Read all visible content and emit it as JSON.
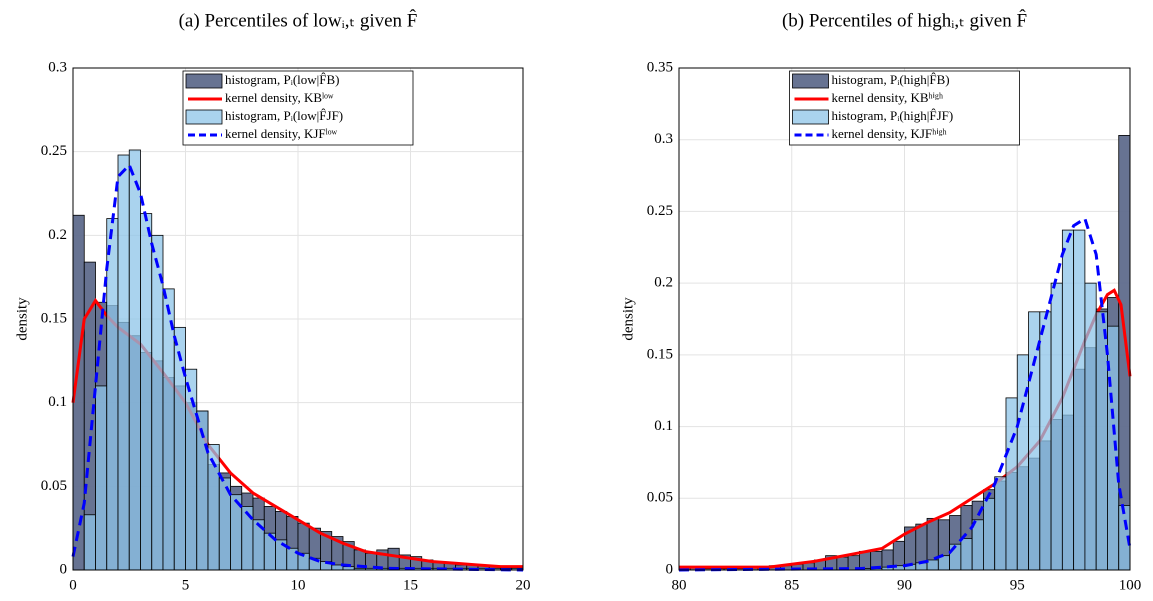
{
  "chart_data": [
    {
      "type": "histogram",
      "title": "(a) Percentiles of lowᵢ,ₜ given F̂",
      "ylabel": "density",
      "xlim": [
        0,
        20
      ],
      "xticks": [
        0,
        5,
        10,
        15,
        20
      ],
      "ylim": [
        0,
        0.3
      ],
      "yticks": [
        0,
        0.05,
        0.1,
        0.15,
        0.2,
        0.25,
        0.3
      ],
      "grid": true,
      "legend": "north",
      "bins": [
        0,
        0.5,
        1,
        1.5,
        2,
        2.5,
        3,
        3.5,
        4,
        4.5,
        5,
        5.5,
        6,
        6.5,
        7,
        7.5,
        8,
        8.5,
        9,
        9.5,
        10,
        10.5,
        11,
        11.5,
        12,
        12.5,
        13,
        13.5,
        14,
        14.5,
        15,
        15.5,
        16,
        16.5,
        17,
        17.5,
        18,
        18.5,
        19,
        19.5,
        20
      ],
      "series": [
        {
          "name": "histogram, Pᵢ(low|F̂B)",
          "type": "histogram",
          "color": "#5f6c8c",
          "opacity": 0.95,
          "values": [
            0.212,
            0.184,
            0.16,
            0.158,
            0.148,
            0.14,
            0.13,
            0.125,
            0.115,
            0.11,
            0.1,
            0.095,
            0.063,
            0.058,
            0.05,
            0.046,
            0.043,
            0.038,
            0.035,
            0.032,
            0.028,
            0.025,
            0.023,
            0.02,
            0.017,
            0.012,
            0.01,
            0.012,
            0.013,
            0.009,
            0.008,
            0.006,
            0.005,
            0.004,
            0.003,
            0.003,
            0.003,
            0.002,
            0.002,
            0.002
          ]
        },
        {
          "name": "kernel density, KBˡᵒʷ",
          "type": "line",
          "color": "#ff0000",
          "dash": false,
          "x": [
            0,
            0.5,
            1,
            1.5,
            2,
            3,
            4,
            5,
            6,
            7,
            8,
            9,
            10,
            11,
            12,
            13,
            14,
            15,
            16,
            17,
            18,
            19,
            20
          ],
          "values": [
            0.1,
            0.15,
            0.161,
            0.152,
            0.145,
            0.135,
            0.118,
            0.1,
            0.075,
            0.058,
            0.046,
            0.038,
            0.03,
            0.022,
            0.016,
            0.011,
            0.009,
            0.007,
            0.005,
            0.004,
            0.003,
            0.002,
            0.002
          ]
        },
        {
          "name": "histogram, Pᵢ(low|F̂JF)",
          "type": "histogram",
          "color": "#8dc4e8",
          "opacity": 0.75,
          "values": [
            0,
            0.033,
            0.11,
            0.21,
            0.248,
            0.251,
            0.213,
            0.2,
            0.168,
            0.145,
            0.12,
            0.095,
            0.075,
            0.055,
            0.045,
            0.038,
            0.03,
            0.022,
            0.018,
            0.013,
            0.01,
            0.007,
            0.005,
            0.003,
            0.002,
            0.001,
            0.001,
            0.001,
            0.001,
            0.001,
            0.001,
            0.001,
            0.001,
            0.001,
            0.001,
            0.001,
            0.001,
            0.001,
            0.001,
            0.001
          ]
        },
        {
          "name": "kernel density, KJFˡᵒʷ",
          "type": "line",
          "color": "#0000ff",
          "dash": true,
          "x": [
            0,
            0.5,
            1,
            1.5,
            2,
            2.5,
            3,
            3.5,
            4,
            4.5,
            5,
            6,
            7,
            8,
            9,
            10,
            11,
            12,
            14,
            20
          ],
          "values": [
            0.008,
            0.04,
            0.11,
            0.18,
            0.235,
            0.242,
            0.225,
            0.195,
            0.17,
            0.14,
            0.115,
            0.07,
            0.045,
            0.03,
            0.018,
            0.01,
            0.005,
            0.003,
            0.001,
            0
          ]
        }
      ]
    },
    {
      "type": "histogram",
      "title": "(b) Percentiles of highᵢ,ₜ given F̂",
      "ylabel": "density",
      "xlim": [
        80,
        100
      ],
      "xticks": [
        80,
        85,
        90,
        95,
        100
      ],
      "ylim": [
        0,
        0.35
      ],
      "yticks": [
        0,
        0.05,
        0.1,
        0.15,
        0.2,
        0.25,
        0.3,
        0.35
      ],
      "grid": true,
      "legend": "north",
      "bins": [
        80,
        80.5,
        81,
        81.5,
        82,
        82.5,
        83,
        83.5,
        84,
        84.5,
        85,
        85.5,
        86,
        86.5,
        87,
        87.5,
        88,
        88.5,
        89,
        89.5,
        90,
        90.5,
        91,
        91.5,
        92,
        92.5,
        93,
        93.5,
        94,
        94.5,
        95,
        95.5,
        96,
        96.5,
        97,
        97.5,
        98,
        98.5,
        99,
        99.5,
        100
      ],
      "series": [
        {
          "name": "histogram, Pᵢ(high|F̂B)",
          "type": "histogram",
          "color": "#5f6c8c",
          "opacity": 0.95,
          "values": [
            0.002,
            0.002,
            0.001,
            0.001,
            0.001,
            0.001,
            0.002,
            0.002,
            0.003,
            0.003,
            0.004,
            0.005,
            0.007,
            0.01,
            0.009,
            0.01,
            0.013,
            0.013,
            0.014,
            0.02,
            0.03,
            0.032,
            0.036,
            0.035,
            0.038,
            0.045,
            0.048,
            0.056,
            0.062,
            0.068,
            0.072,
            0.078,
            0.09,
            0.105,
            0.108,
            0.14,
            0.155,
            0.182,
            0.19,
            0.303
          ]
        },
        {
          "name": "kernel density, KBʰⁱᵍʰ",
          "type": "line",
          "color": "#ff0000",
          "dash": false,
          "x": [
            80,
            84,
            86,
            88,
            89,
            90,
            91,
            92,
            93,
            94,
            95,
            96,
            97,
            98,
            98.5,
            99,
            99.3,
            99.6,
            100
          ],
          "values": [
            0.002,
            0.002,
            0.006,
            0.012,
            0.015,
            0.025,
            0.033,
            0.04,
            0.05,
            0.06,
            0.072,
            0.09,
            0.12,
            0.16,
            0.178,
            0.192,
            0.195,
            0.185,
            0.135
          ]
        },
        {
          "name": "histogram, Pᵢ(high|F̂JF)",
          "type": "histogram",
          "color": "#8dc4e8",
          "opacity": 0.75,
          "values": [
            0,
            0,
            0,
            0,
            0,
            0,
            0,
            0,
            0,
            0,
            0,
            0,
            0,
            0,
            0,
            0,
            0.001,
            0.001,
            0.002,
            0.003,
            0.004,
            0.005,
            0.007,
            0.01,
            0.018,
            0.022,
            0.035,
            0.05,
            0.065,
            0.12,
            0.15,
            0.18,
            0.18,
            0.2,
            0.237,
            0.237,
            0.2,
            0.18,
            0.17,
            0.045
          ]
        },
        {
          "name": "kernel density, KJFʰⁱᵍʰ",
          "type": "line",
          "color": "#0000ff",
          "dash": true,
          "x": [
            80,
            88,
            90,
            91,
            92,
            93,
            94,
            95,
            96,
            96.5,
            97,
            97.5,
            98,
            98.5,
            99,
            99.5,
            100
          ],
          "values": [
            0,
            0.001,
            0.003,
            0.006,
            0.012,
            0.03,
            0.06,
            0.1,
            0.16,
            0.19,
            0.22,
            0.24,
            0.245,
            0.22,
            0.15,
            0.06,
            0.015
          ]
        }
      ]
    }
  ]
}
